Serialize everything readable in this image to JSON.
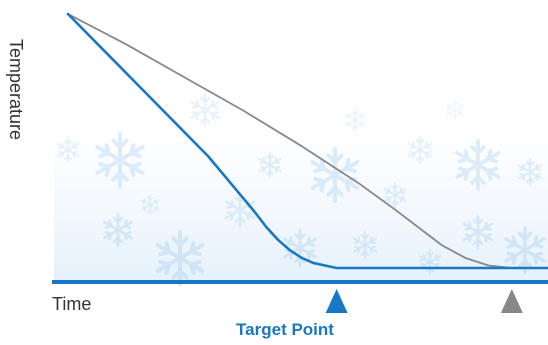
{
  "chart_data": {
    "type": "line",
    "ylabel": "Temperature",
    "xlabel": "Time",
    "xlim": [
      0,
      100
    ],
    "ylim": [
      0,
      100
    ],
    "grid": false,
    "legend": "none",
    "series": [
      {
        "color": "#1a78c2",
        "x": [
          0,
          6,
          12,
          18,
          24,
          28,
          32,
          34,
          36,
          38,
          40,
          42,
          44,
          46,
          50,
          56,
          64,
          72,
          80,
          88,
          96,
          100
        ],
        "y": [
          100,
          86,
          72,
          58,
          44,
          33,
          22,
          16,
          11,
          7,
          4,
          2,
          1,
          0,
          0,
          0,
          0,
          0,
          0,
          0,
          0,
          0
        ]
      },
      {
        "color": "#888888",
        "x": [
          0,
          10,
          20,
          30,
          40,
          50,
          56,
          60,
          64,
          68,
          72,
          76,
          80,
          84,
          88,
          92,
          96,
          100
        ],
        "y": [
          100,
          88,
          75,
          62,
          48,
          33,
          23,
          16,
          9,
          4,
          1,
          0,
          0,
          0,
          0,
          0,
          0,
          0
        ]
      }
    ],
    "markers": [
      {
        "name": "target-point-marker",
        "x": 46,
        "color": "#1a78c2"
      },
      {
        "name": "gray-endpoint-marker",
        "x": 76,
        "color": "#888888"
      }
    ],
    "annotation": {
      "text": "Target Point",
      "color": "#1a78c2"
    },
    "axis_colors": {
      "y_top": "#e8643c",
      "y_bottom": "#2a78c8",
      "x": "#1a78c2"
    },
    "background": "snowflakes"
  }
}
